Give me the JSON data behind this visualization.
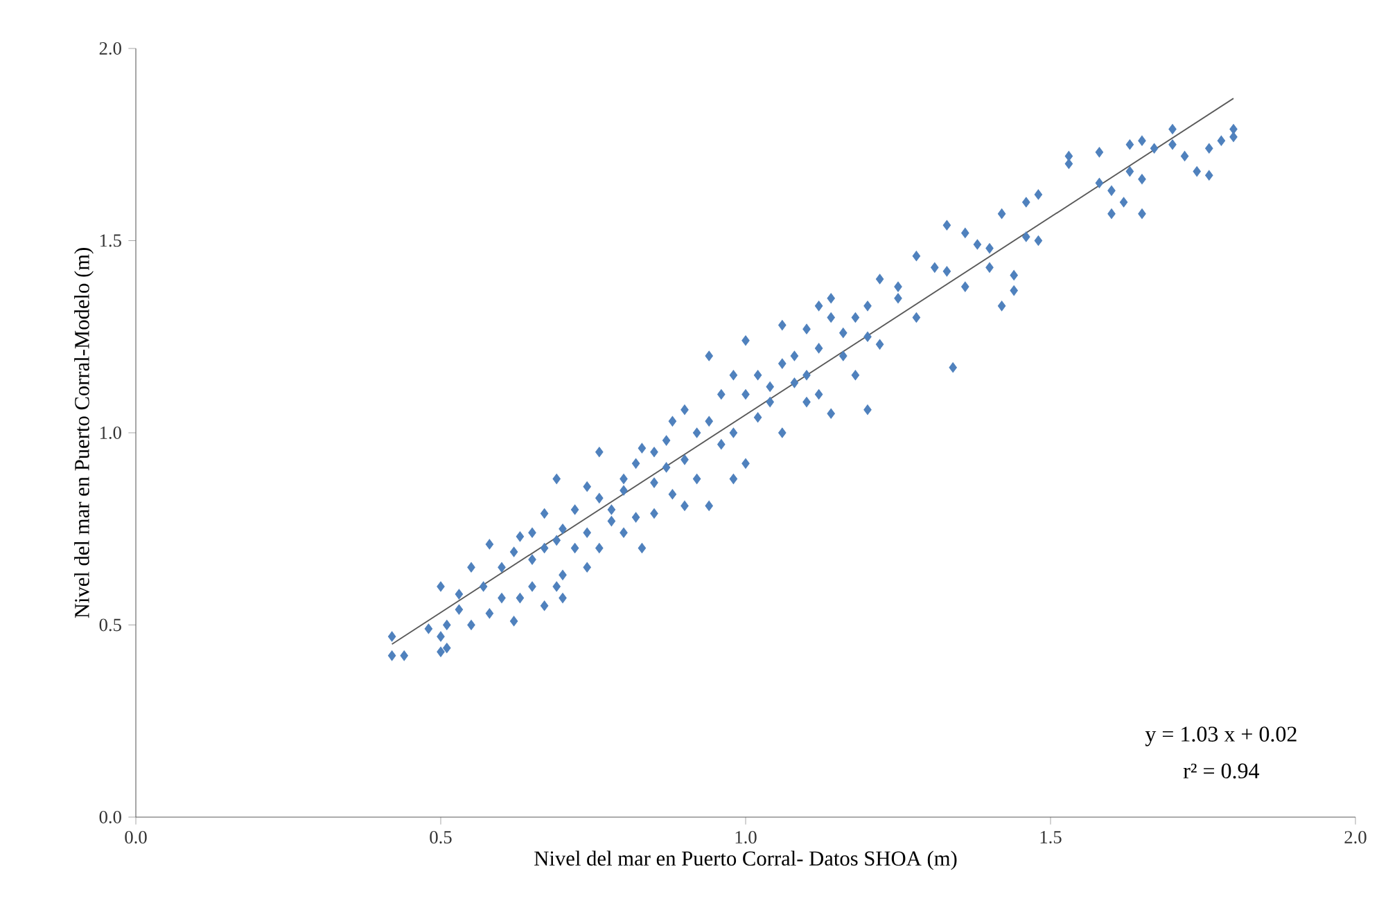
{
  "chart_data": {
    "type": "scatter",
    "xlabel": "Nivel  del mar en Puerto Corral- Datos SHOA (m)",
    "ylabel": "Nivel  del mar en Puerto Corral-Modelo (m)",
    "xlim": [
      0,
      2
    ],
    "ylim": [
      0,
      2
    ],
    "xticks": [
      {
        "value": 0,
        "label": "0.0"
      },
      {
        "value": 0.5,
        "label": "0.5"
      },
      {
        "value": 1,
        "label": "1.0"
      },
      {
        "value": 1.5,
        "label": "1.5"
      },
      {
        "value": 2,
        "label": "2.0"
      }
    ],
    "yticks": [
      {
        "value": 0,
        "label": "0.0"
      },
      {
        "value": 0.5,
        "label": "0.5"
      },
      {
        "value": 1,
        "label": "1.0"
      },
      {
        "value": 1.5,
        "label": "1.5"
      },
      {
        "value": 2,
        "label": "2.0"
      }
    ],
    "grid": false,
    "marker": "diamond",
    "annotations": [
      "y = 1.03 x + 0.02",
      "r² = 0.94"
    ],
    "series": [
      {
        "color": "#4f81bd",
        "x": [
          0.42,
          0.42,
          0.44,
          0.48,
          0.5,
          0.5,
          0.5,
          0.51,
          0.51,
          0.53,
          0.53,
          0.55,
          0.55,
          0.57,
          0.58,
          0.58,
          0.6,
          0.6,
          0.62,
          0.62,
          0.63,
          0.63,
          0.65,
          0.65,
          0.65,
          0.67,
          0.67,
          0.67,
          0.69,
          0.69,
          0.69,
          0.7,
          0.7,
          0.7,
          0.72,
          0.72,
          0.74,
          0.74,
          0.74,
          0.76,
          0.76,
          0.76,
          0.78,
          0.78,
          0.8,
          0.8,
          0.8,
          0.82,
          0.82,
          0.83,
          0.83,
          0.85,
          0.85,
          0.85,
          0.87,
          0.87,
          0.88,
          0.88,
          0.9,
          0.9,
          0.9,
          0.92,
          0.92,
          0.94,
          0.94,
          0.94,
          0.96,
          0.96,
          0.98,
          0.98,
          0.98,
          1.0,
          1.0,
          1.0,
          1.02,
          1.02,
          1.04,
          1.04,
          1.06,
          1.06,
          1.06,
          1.08,
          1.08,
          1.1,
          1.1,
          1.1,
          1.12,
          1.12,
          1.12,
          1.14,
          1.14,
          1.14,
          1.16,
          1.16,
          1.18,
          1.18,
          1.2,
          1.2,
          1.2,
          1.22,
          1.22,
          1.25,
          1.25,
          1.28,
          1.28,
          1.31,
          1.33,
          1.33,
          1.34,
          1.36,
          1.36,
          1.38,
          1.4,
          1.4,
          1.42,
          1.42,
          1.44,
          1.44,
          1.46,
          1.46,
          1.48,
          1.48,
          1.53,
          1.53,
          1.58,
          1.58,
          1.6,
          1.6,
          1.62,
          1.63,
          1.63,
          1.65,
          1.65,
          1.65,
          1.67,
          1.7,
          1.7,
          1.72,
          1.74,
          1.76,
          1.76,
          1.78,
          1.8,
          1.8
        ],
        "values": [
          0.47,
          0.42,
          0.42,
          0.49,
          0.43,
          0.6,
          0.47,
          0.44,
          0.5,
          0.58,
          0.54,
          0.65,
          0.5,
          0.6,
          0.71,
          0.53,
          0.65,
          0.57,
          0.51,
          0.69,
          0.73,
          0.57,
          0.74,
          0.67,
          0.6,
          0.79,
          0.7,
          0.55,
          0.88,
          0.72,
          0.6,
          0.75,
          0.57,
          0.63,
          0.8,
          0.7,
          0.86,
          0.74,
          0.65,
          0.95,
          0.83,
          0.7,
          0.8,
          0.77,
          0.88,
          0.85,
          0.74,
          0.92,
          0.78,
          0.96,
          0.7,
          0.87,
          0.95,
          0.79,
          0.98,
          0.91,
          1.03,
          0.84,
          1.06,
          0.93,
          0.81,
          1.0,
          0.88,
          1.2,
          1.03,
          0.81,
          1.1,
          0.97,
          1.15,
          1.0,
          0.88,
          1.24,
          1.1,
          0.92,
          1.15,
          1.04,
          1.12,
          1.08,
          1.28,
          1.18,
          1.0,
          1.2,
          1.13,
          1.27,
          1.15,
          1.08,
          1.33,
          1.22,
          1.1,
          1.35,
          1.3,
          1.05,
          1.26,
          1.2,
          1.3,
          1.15,
          1.33,
          1.25,
          1.06,
          1.4,
          1.23,
          1.35,
          1.38,
          1.46,
          1.3,
          1.43,
          1.54,
          1.42,
          1.17,
          1.52,
          1.38,
          1.49,
          1.48,
          1.43,
          1.33,
          1.57,
          1.41,
          1.37,
          1.6,
          1.51,
          1.62,
          1.5,
          1.7,
          1.72,
          1.73,
          1.65,
          1.63,
          1.57,
          1.6,
          1.75,
          1.68,
          1.66,
          1.57,
          1.76,
          1.74,
          1.79,
          1.75,
          1.72,
          1.68,
          1.74,
          1.67,
          1.76,
          1.79,
          1.77
        ]
      },
      {
        "type": "line",
        "color": "#595959",
        "marker": "none",
        "line_style": "solid",
        "x": [
          0.42,
          1.8
        ],
        "values": [
          0.45,
          1.87
        ]
      }
    ]
  }
}
